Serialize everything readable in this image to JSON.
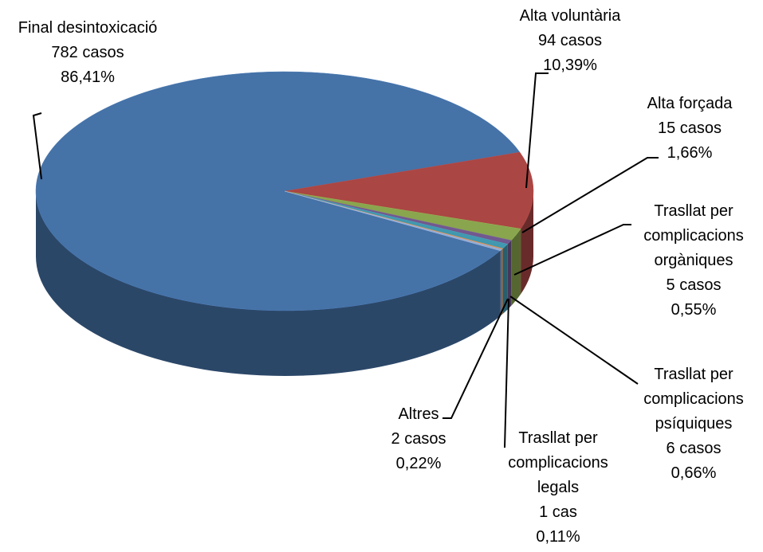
{
  "chart_data": {
    "type": "pie3d",
    "categories": [
      "Final desintoxicació",
      "Alta voluntària",
      "Alta forçada",
      "Trasllat per complicacions orgàniques",
      "Trasllat per complicacions psíquiques",
      "Trasllat per complicacions legals",
      "Altres"
    ],
    "values": [
      782,
      94,
      15,
      5,
      6,
      1,
      2
    ],
    "value_labels": [
      "782 casos",
      "94 casos",
      "15 casos",
      "5 casos",
      "6 casos",
      "1 cas",
      "2 casos"
    ],
    "percentages": [
      86.41,
      10.39,
      1.66,
      0.55,
      0.66,
      0.11,
      0.22
    ],
    "percentage_labels": [
      "86,41%",
      "10,39%",
      "1,66%",
      "0,55%",
      "0,66%",
      "0,11%",
      "0,22%"
    ],
    "colors": [
      "#4572a7",
      "#aa4643",
      "#89a54e",
      "#71588f",
      "#4198af",
      "#db843d",
      "#93a9cf"
    ]
  }
}
